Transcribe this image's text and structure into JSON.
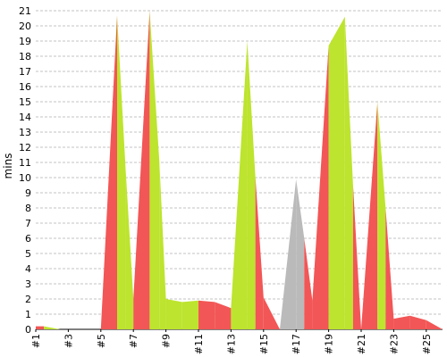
{
  "chart_data": {
    "type": "area",
    "title": "",
    "xlabel": "",
    "ylabel": "mins",
    "ylim": [
      0,
      21
    ],
    "yticks": [
      0,
      1,
      2,
      3,
      4,
      5,
      6,
      7,
      8,
      9,
      10,
      11,
      12,
      13,
      14,
      15,
      16,
      17,
      18,
      19,
      20,
      21
    ],
    "grid": "horizontal-dashed",
    "legend": "none",
    "x_tick_labels": [
      "#1",
      "#3",
      "#5",
      "#7",
      "#9",
      "#11",
      "#13",
      "#15",
      "#17",
      "#19",
      "#21",
      "#23",
      "#25"
    ],
    "colors": {
      "red": "#f25656",
      "green": "#bde42e",
      "gray": "#bababa",
      "grid": "#888888"
    },
    "points": [
      {
        "x": 1.0,
        "y": 0.2,
        "color": "red"
      },
      {
        "x": 1.5,
        "y": 0.2,
        "color": "green"
      },
      {
        "x": 2.5,
        "y": 0.0,
        "color": "red"
      },
      {
        "x": 4.0,
        "y": 0.0,
        "color": "red"
      },
      {
        "x": 5.0,
        "y": 0.0,
        "color": "red"
      },
      {
        "x": 6.0,
        "y": 20.7,
        "color": "green"
      },
      {
        "x": 6.5,
        "y": 11.0,
        "color": "green"
      },
      {
        "x": 7.0,
        "y": 2.0,
        "color": "red"
      },
      {
        "x": 8.0,
        "y": 21.0,
        "color": "green"
      },
      {
        "x": 8.6,
        "y": 11.0,
        "color": "green"
      },
      {
        "x": 9.0,
        "y": 2.0,
        "color": "green"
      },
      {
        "x": 10.0,
        "y": 1.8,
        "color": "green"
      },
      {
        "x": 11.0,
        "y": 1.9,
        "color": "red"
      },
      {
        "x": 12.0,
        "y": 1.8,
        "color": "red"
      },
      {
        "x": 13.0,
        "y": 1.4,
        "color": "green"
      },
      {
        "x": 14.0,
        "y": 19.0,
        "color": "green"
      },
      {
        "x": 14.5,
        "y": 10.0,
        "color": "red"
      },
      {
        "x": 15.0,
        "y": 2.1,
        "color": "red"
      },
      {
        "x": 16.0,
        "y": 0.0,
        "color": "gray"
      },
      {
        "x": 17.0,
        "y": 9.9,
        "color": "gray"
      },
      {
        "x": 17.5,
        "y": 6.0,
        "color": "red"
      },
      {
        "x": 18.0,
        "y": 1.9,
        "color": "red"
      },
      {
        "x": 19.0,
        "y": 18.7,
        "color": "green"
      },
      {
        "x": 20.0,
        "y": 20.6,
        "color": "green"
      },
      {
        "x": 20.5,
        "y": 9.5,
        "color": "red"
      },
      {
        "x": 21.0,
        "y": 0.0,
        "color": "red"
      },
      {
        "x": 22.0,
        "y": 15.0,
        "color": "green"
      },
      {
        "x": 22.5,
        "y": 8.0,
        "color": "red"
      },
      {
        "x": 23.0,
        "y": 0.7,
        "color": "red"
      },
      {
        "x": 24.0,
        "y": 0.9,
        "color": "red"
      },
      {
        "x": 25.0,
        "y": 0.6,
        "color": "red"
      },
      {
        "x": 26.0,
        "y": 0.0,
        "color": "red"
      }
    ]
  }
}
